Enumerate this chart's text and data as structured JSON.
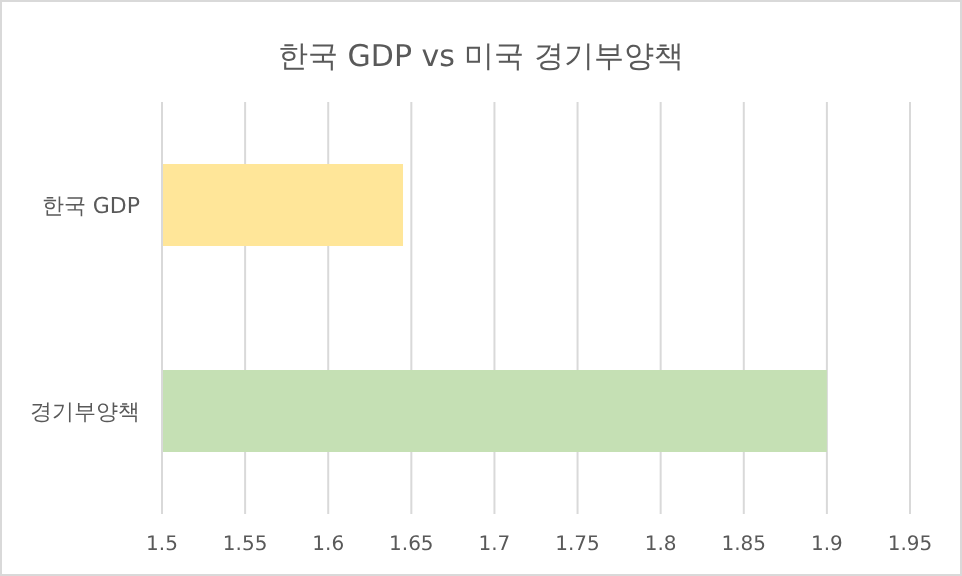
{
  "chart_data": {
    "type": "bar",
    "orientation": "horizontal",
    "title": "한국 GDP vs 미국 경기부양책",
    "categories": [
      "한국 GDP",
      "경기부양책"
    ],
    "values": [
      1.645,
      1.9
    ],
    "colors": [
      "#ffe699",
      "#c5e0b4"
    ],
    "xlim": [
      1.5,
      1.95
    ],
    "xticks": [
      1.5,
      1.55,
      1.6,
      1.65,
      1.7,
      1.75,
      1.8,
      1.85,
      1.9,
      1.95
    ],
    "grid": "x"
  }
}
